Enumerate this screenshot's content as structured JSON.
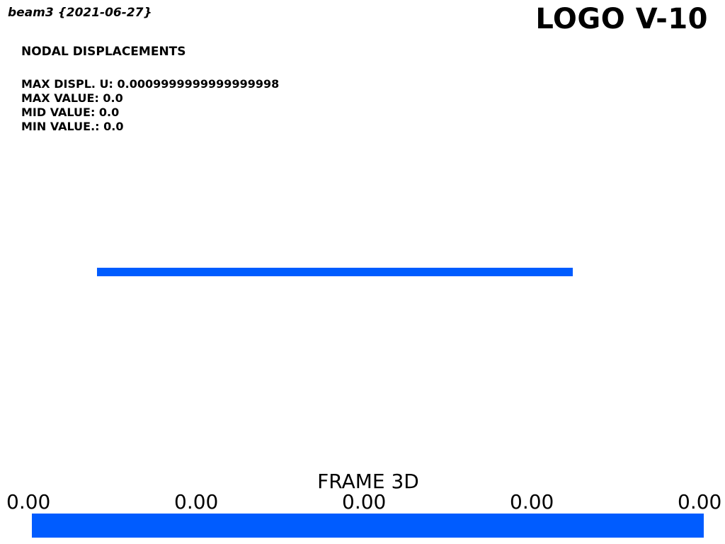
{
  "header": {
    "model_title": "beam3 {2021-06-27}",
    "logo": "LOGO V-10"
  },
  "result": {
    "title": "NODAL DISPLACEMENTS",
    "max_displ_label": "MAX DISPL. U: 0.0009999999999999998",
    "max_value_label": "MAX VALUE: 0.0",
    "mid_value_label": "MID VALUE: 0.0",
    "min_value_label": "MIN VALUE.: 0.0"
  },
  "scalar_bar": {
    "title": "FRAME 3D",
    "ticks": [
      "0.00",
      "0.00",
      "0.00",
      "0.00",
      "0.00"
    ]
  },
  "colors": {
    "beam": "#005cff",
    "bar": "#005cff"
  }
}
